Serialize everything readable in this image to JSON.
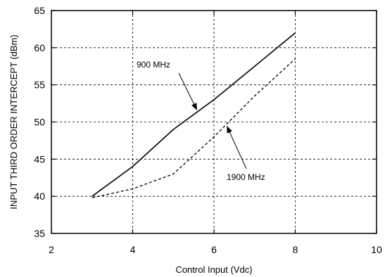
{
  "chart_data": {
    "type": "line",
    "title": "",
    "xlabel": "Control Input (Vdc)",
    "ylabel": "INPUT THIRD ORDER INTERCEPT (dBm)",
    "xlim": [
      2,
      10
    ],
    "ylim": [
      35,
      65
    ],
    "x_ticks": [
      2,
      4,
      6,
      8,
      10
    ],
    "y_ticks": [
      35,
      40,
      45,
      50,
      55,
      60,
      65
    ],
    "x_tick_labels": [
      "2",
      "4",
      "6",
      "8",
      "10"
    ],
    "y_tick_labels": [
      "35",
      "40",
      "45",
      "50",
      "55",
      "60",
      "65"
    ],
    "grid": true,
    "legend": "none",
    "series": [
      {
        "name": "900 MHz",
        "style": "solid",
        "color": "#000000",
        "x": [
          3,
          4,
          5,
          6,
          7,
          8
        ],
        "y": [
          40,
          44,
          49,
          53,
          57.5,
          62
        ]
      },
      {
        "name": "1900 MHz",
        "style": "dashed",
        "color": "#000000",
        "x": [
          3,
          4,
          5,
          6,
          7,
          8
        ],
        "y": [
          39.8,
          41,
          43,
          48,
          53.5,
          58.5
        ]
      }
    ],
    "annotations": [
      {
        "text": "900 MHz",
        "target_series": 0,
        "target_x": 5.6
      },
      {
        "text": "1900 MHz",
        "target_series": 1,
        "target_x": 6.3
      }
    ]
  }
}
